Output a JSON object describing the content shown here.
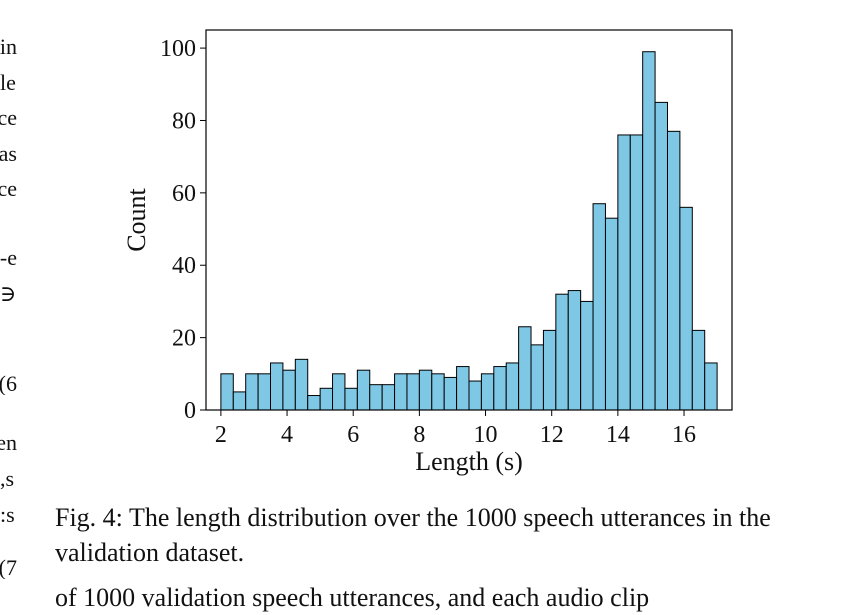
{
  "left_column_fragments": [
    "in",
    "le",
    "ce",
    "as",
    "ce",
    "e-",
    "∈",
    "6)",
    "en",
    "s,",
    "s:",
    "7)"
  ],
  "chart_data": {
    "type": "bar",
    "xlabel": "Length (s)",
    "ylabel": "Count",
    "xlim": [
      1.55,
      17.45
    ],
    "ylim": [
      0,
      105
    ],
    "xticks": [
      2,
      4,
      6,
      8,
      10,
      12,
      14,
      16
    ],
    "yticks": [
      0,
      20,
      40,
      60,
      80,
      100
    ],
    "bin_start": 2.0,
    "bin_width": 0.375,
    "values": [
      10,
      5,
      10,
      10,
      13,
      11,
      14,
      4,
      6,
      10,
      6,
      11,
      7,
      7,
      10,
      10,
      11,
      10,
      9,
      12,
      8,
      10,
      12,
      13,
      23,
      18,
      22,
      32,
      33,
      30,
      57,
      53,
      76,
      76,
      99,
      85,
      77,
      56,
      22,
      13
    ],
    "bar_color": "#7ec8e6",
    "edge_color": "#000000"
  },
  "caption": {
    "text": "Fig. 4: The length distribution over the 1000 speech utterances in the validation dataset."
  },
  "bottom_line_text": "of 1000 validation speech utterances, and each audio clip"
}
